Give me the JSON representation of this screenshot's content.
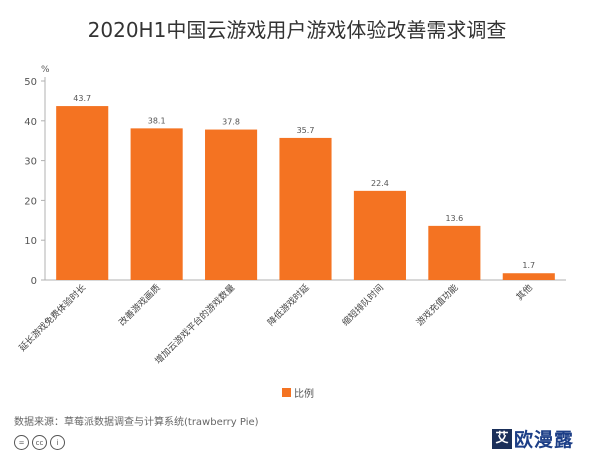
{
  "title": "2020H1中国云游戏用户游戏体验改善需求调查",
  "chart_data": {
    "type": "bar",
    "title": "2020H1中国云游戏用户游戏体验改善需求调查",
    "unit_label": "%",
    "categories": [
      "延长游戏免费体验时长",
      "改善游戏画质",
      "增加云游戏平台的游戏数量",
      "降低游戏时延",
      "缩短排队时间",
      "游戏充值功能",
      "其他"
    ],
    "series": [
      {
        "name": "比例",
        "values": [
          43.7,
          38.1,
          37.8,
          35.7,
          22.4,
          13.6,
          1.7
        ]
      }
    ],
    "data_labels": [
      "43.7",
      "38.1",
      "37.8",
      "35.7",
      "22.4",
      "13.6",
      "1.7"
    ],
    "yticks": [
      "0",
      "10",
      "20",
      "30",
      "40",
      "50"
    ],
    "ylim": [
      0,
      50
    ],
    "grid": false,
    "legend_position": "bottom",
    "bar_color": "#F47322",
    "axis_color": "#b0b0b0"
  },
  "legend_label": "比例",
  "source": "数据来源：草莓派数据调查与计算系统(trawberry  Pie)",
  "cc_icons": [
    "=",
    "cc",
    "i"
  ],
  "watermark": {
    "logo": "艾",
    "text": "欧漫露"
  }
}
